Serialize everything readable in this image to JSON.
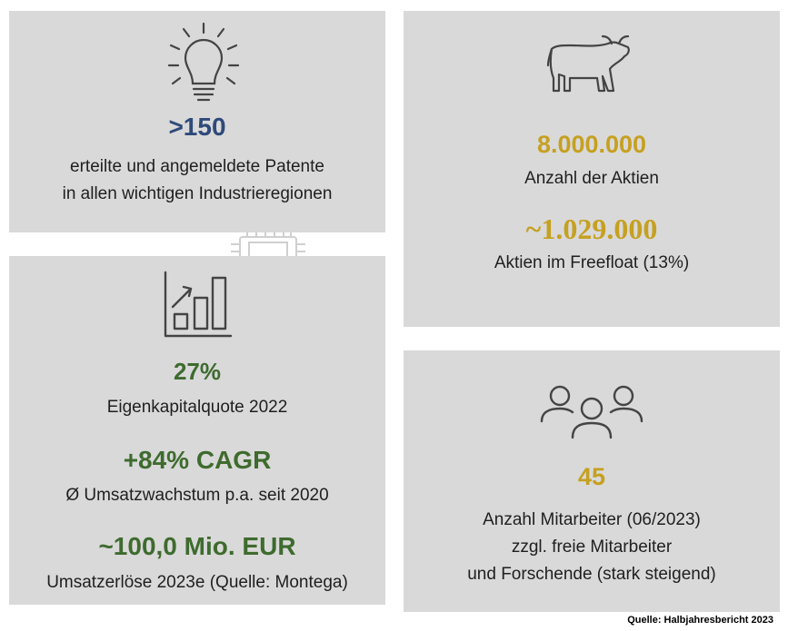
{
  "colors": {
    "navy": "#2e4a7a",
    "gold": "#c6a020",
    "green": "#3e6b2e",
    "panel": "#d9d9d9",
    "icon_stroke": "#444444"
  },
  "patents": {
    "icon": "lightbulb-icon",
    "value": ">150",
    "line1": "erteilte und angemeldete Patente",
    "line2": "in allen wichtigen Industrieregionen"
  },
  "shares": {
    "icon": "bull-icon",
    "value1": "8.000.000",
    "label1": "Anzahl der Aktien",
    "value2": "~1.029.000",
    "label2": "Aktien im Freefloat (13%)"
  },
  "finance": {
    "icon": "bar-chart-growth-icon",
    "value1": "27%",
    "label1": "Eigenkapitalquote 2022",
    "value2": "+84% CAGR",
    "label2": "Ø Umsatzwachstum p.a. seit 2020",
    "value3": "~100,0 Mio. EUR",
    "label3": "Umsatzerlöse 2023e (Quelle: Montega)"
  },
  "employees": {
    "icon": "people-group-icon",
    "value": "45",
    "line1": "Anzahl Mitarbeiter (06/2023)",
    "line2": "zzgl. freie Mitarbeiter",
    "line3": "und Forschende (stark steigend)"
  },
  "source": "Quelle: Halbjahresbericht 2023"
}
